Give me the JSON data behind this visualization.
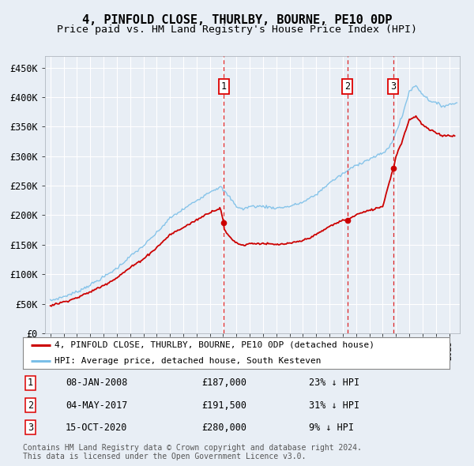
{
  "title": "4, PINFOLD CLOSE, THURLBY, BOURNE, PE10 0DP",
  "subtitle": "Price paid vs. HM Land Registry's House Price Index (HPI)",
  "yticks": [
    0,
    50000,
    100000,
    150000,
    200000,
    250000,
    300000,
    350000,
    400000,
    450000
  ],
  "ytick_labels": [
    "£0",
    "£50K",
    "£100K",
    "£150K",
    "£200K",
    "£250K",
    "£300K",
    "£350K",
    "£400K",
    "£450K"
  ],
  "ylim": [
    0,
    470000
  ],
  "xlim_start": 1994.6,
  "xlim_end": 2025.8,
  "hpi_color": "#7bbfe8",
  "price_color": "#cc0000",
  "sale_marker_color": "#cc0000",
  "dashed_line_color": "#dd0000",
  "background_color": "#e8eef5",
  "plot_bg_color": "#e8eef5",
  "grid_color": "#ffffff",
  "sales": [
    {
      "date_num": 2008.04,
      "price": 187000,
      "label": "1"
    },
    {
      "date_num": 2017.34,
      "price": 191500,
      "label": "2"
    },
    {
      "date_num": 2020.79,
      "price": 280000,
      "label": "3"
    }
  ],
  "legend_entries": [
    {
      "label": "4, PINFOLD CLOSE, THURLBY, BOURNE, PE10 0DP (detached house)",
      "color": "#cc0000"
    },
    {
      "label": "HPI: Average price, detached house, South Kesteven",
      "color": "#7bbfe8"
    }
  ],
  "table_rows": [
    {
      "num": "1",
      "date": "08-JAN-2008",
      "price": "£187,000",
      "hpi": "23% ↓ HPI"
    },
    {
      "num": "2",
      "date": "04-MAY-2017",
      "price": "£191,500",
      "hpi": "31% ↓ HPI"
    },
    {
      "num": "3",
      "date": "15-OCT-2020",
      "price": "£280,000",
      "hpi": "9% ↓ HPI"
    }
  ],
  "footnote": "Contains HM Land Registry data © Crown copyright and database right 2024.\nThis data is licensed under the Open Government Licence v3.0.",
  "title_fontsize": 11,
  "subtitle_fontsize": 9.5,
  "hpi_keypoints_x": [
    1995,
    1996,
    1997,
    1998,
    1999,
    2000,
    2001,
    2002,
    2003,
    2004,
    2005,
    2006,
    2007,
    2007.8,
    2008.5,
    2009,
    2009.5,
    2010,
    2011,
    2012,
    2013,
    2014,
    2015,
    2016,
    2017,
    2018,
    2019,
    2020,
    2020.5,
    2021,
    2021.5,
    2022,
    2022.5,
    2023,
    2023.5,
    2024,
    2024.5,
    2025.5
  ],
  "hpi_keypoints_y": [
    55000,
    62000,
    70000,
    82000,
    95000,
    110000,
    130000,
    148000,
    170000,
    195000,
    210000,
    225000,
    240000,
    248000,
    230000,
    215000,
    210000,
    215000,
    215000,
    212000,
    215000,
    222000,
    235000,
    255000,
    270000,
    285000,
    295000,
    305000,
    315000,
    340000,
    370000,
    410000,
    420000,
    405000,
    395000,
    390000,
    385000,
    390000
  ],
  "price_keypoints_x": [
    1995,
    1996,
    1997,
    1998,
    1999,
    2000,
    2001,
    2002,
    2003,
    2004,
    2005,
    2006,
    2007,
    2007.8,
    2008.04,
    2008.08,
    2008.5,
    2009,
    2009.5,
    2010,
    2011,
    2012,
    2013,
    2014,
    2015,
    2016,
    2017,
    2017.34,
    2017.38,
    2018,
    2019,
    2020,
    2020.79,
    2020.83,
    2021,
    2021.5,
    2022,
    2022.5,
    2023,
    2023.5,
    2024,
    2024.5,
    2025.3
  ],
  "price_keypoints_y": [
    47000,
    53000,
    60000,
    70000,
    81000,
    94000,
    111000,
    126000,
    145000,
    167000,
    179000,
    192000,
    205000,
    212000,
    187000,
    175000,
    163000,
    153000,
    149000,
    152000,
    152000,
    150000,
    152000,
    157000,
    167000,
    181000,
    191500,
    191500,
    191500,
    201000,
    208000,
    215000,
    280000,
    280000,
    300000,
    328000,
    362000,
    368000,
    353000,
    345000,
    340000,
    335000,
    335000
  ]
}
